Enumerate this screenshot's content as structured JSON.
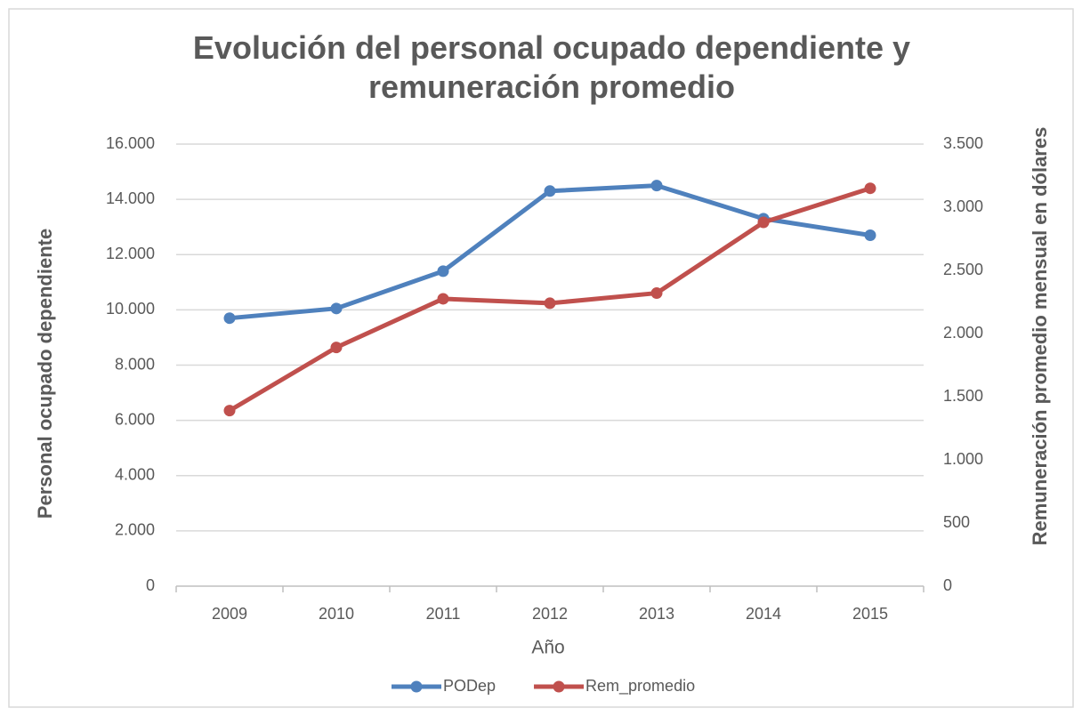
{
  "chart_data": {
    "type": "line",
    "title": "Evolución del personal ocupado dependiente y remuneración promedio",
    "x_label": "Año",
    "y_label": "Personal ocupado dependiente",
    "y2_label": "Remuneración promedio mensual en dólares",
    "categories": [
      "2009",
      "2010",
      "2011",
      "2012",
      "2013",
      "2014",
      "2015"
    ],
    "series": [
      {
        "name": "PODep",
        "color": "#4f81bd",
        "values": [
          9700,
          10050,
          11400,
          14300,
          14500,
          13300,
          12700
        ]
      },
      {
        "name": "Rem_promedio",
        "color": "#c0504d",
        "axis": "y2",
        "values": [
          1390,
          1890,
          2275,
          2240,
          2320,
          2880,
          3150
        ]
      }
    ],
    "ylim": [
      0,
      16000
    ],
    "yticks": [
      0,
      {
        "value": 2000,
        "label": "2.000"
      },
      {
        "value": 4000,
        "label": "4.000"
      },
      {
        "value": 6000,
        "label": "6.000"
      },
      {
        "value": 8000,
        "label": "8.000"
      },
      {
        "value": 10000,
        "label": "10.000"
      },
      {
        "value": 12000,
        "label": "12.000"
      },
      {
        "value": 14000,
        "label": "14.000"
      },
      {
        "value": 16000,
        "label": "16.000"
      }
    ],
    "y2lim": [
      0,
      3500
    ],
    "y2ticks": [
      0,
      500,
      {
        "value": 1000,
        "label": "1.000"
      },
      {
        "value": 1500,
        "label": "1.500"
      },
      {
        "value": 2000,
        "label": "2.000"
      },
      {
        "value": 2500,
        "label": "2.500"
      },
      {
        "value": 3000,
        "label": "3.000"
      },
      {
        "value": 3500,
        "label": "3.500"
      }
    ],
    "grid": true,
    "legend": "bottom"
  }
}
